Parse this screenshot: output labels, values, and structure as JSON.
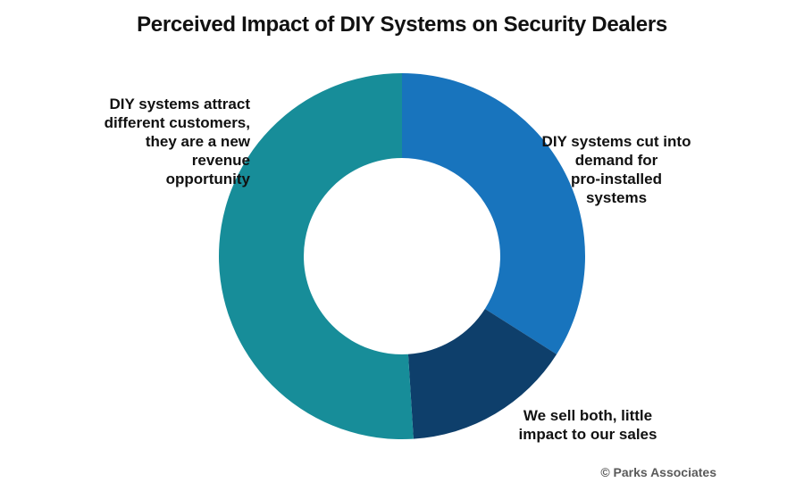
{
  "chart_data": {
    "type": "pie",
    "title": "Perceived Impact of DIY Systems on Security Dealers",
    "categories": [
      "DIY systems cut into\ndemand for\npro-installed\nsystems",
      "We sell both, little\nimpact to our sales",
      "DIY systems attract\ndifferent customers,\nthey are a new\nrevenue\nopportunity"
    ],
    "values": [
      34,
      15,
      51
    ],
    "colors": [
      "#1874bd",
      "#0e3f6b",
      "#178d99"
    ],
    "donut": true,
    "start_angle": "12 o'clock",
    "direction": "clockwise"
  },
  "copyright": "© Parks Associates"
}
